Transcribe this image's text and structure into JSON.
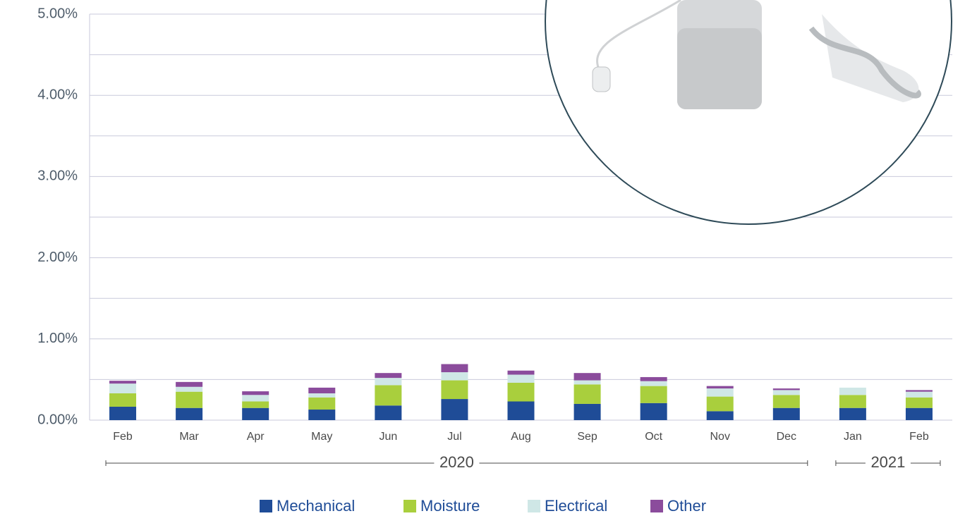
{
  "chart_data": {
    "type": "stacked_bar",
    "categories": [
      "Feb",
      "Mar",
      "Apr",
      "May",
      "Jun",
      "Jul",
      "Aug",
      "Sep",
      "Oct",
      "Nov",
      "Dec",
      "Jan",
      "Feb"
    ],
    "groups": [
      {
        "label": "2020",
        "start": 0,
        "end": 10
      },
      {
        "label": "2021",
        "start": 11,
        "end": 12
      }
    ],
    "series": [
      {
        "name": "Mechanical",
        "color": "#1f4c97",
        "values": [
          0.165,
          0.15,
          0.15,
          0.13,
          0.18,
          0.26,
          0.23,
          0.2,
          0.21,
          0.11,
          0.15,
          0.15,
          0.15
        ]
      },
      {
        "name": "Moisture",
        "color": "#a9cf3d",
        "values": [
          0.165,
          0.2,
          0.08,
          0.15,
          0.25,
          0.23,
          0.23,
          0.24,
          0.21,
          0.18,
          0.16,
          0.16,
          0.13
        ]
      },
      {
        "name": "Electrical",
        "color": "#cfe7e6",
        "values": [
          0.12,
          0.06,
          0.08,
          0.05,
          0.09,
          0.1,
          0.1,
          0.05,
          0.06,
          0.1,
          0.06,
          0.09,
          0.07
        ]
      },
      {
        "name": "Other",
        "color": "#8b4c9c",
        "values": [
          0.035,
          0.06,
          0.045,
          0.07,
          0.06,
          0.1,
          0.05,
          0.09,
          0.05,
          0.03,
          0.02,
          0,
          0.02
        ]
      }
    ],
    "ylim": [
      0,
      5
    ],
    "yticks": [
      {
        "value": 0,
        "label": "0.00%"
      },
      {
        "value": 1,
        "label": "1.00%"
      },
      {
        "value": 2,
        "label": "2.00%"
      },
      {
        "value": 3,
        "label": "3.00%"
      },
      {
        "value": 4,
        "label": "4.00%"
      },
      {
        "value": 5,
        "label": "5.00%"
      }
    ],
    "minor_yticks": [
      0.5,
      1.5,
      2.5,
      3.5,
      4.5
    ],
    "grid": true
  }
}
